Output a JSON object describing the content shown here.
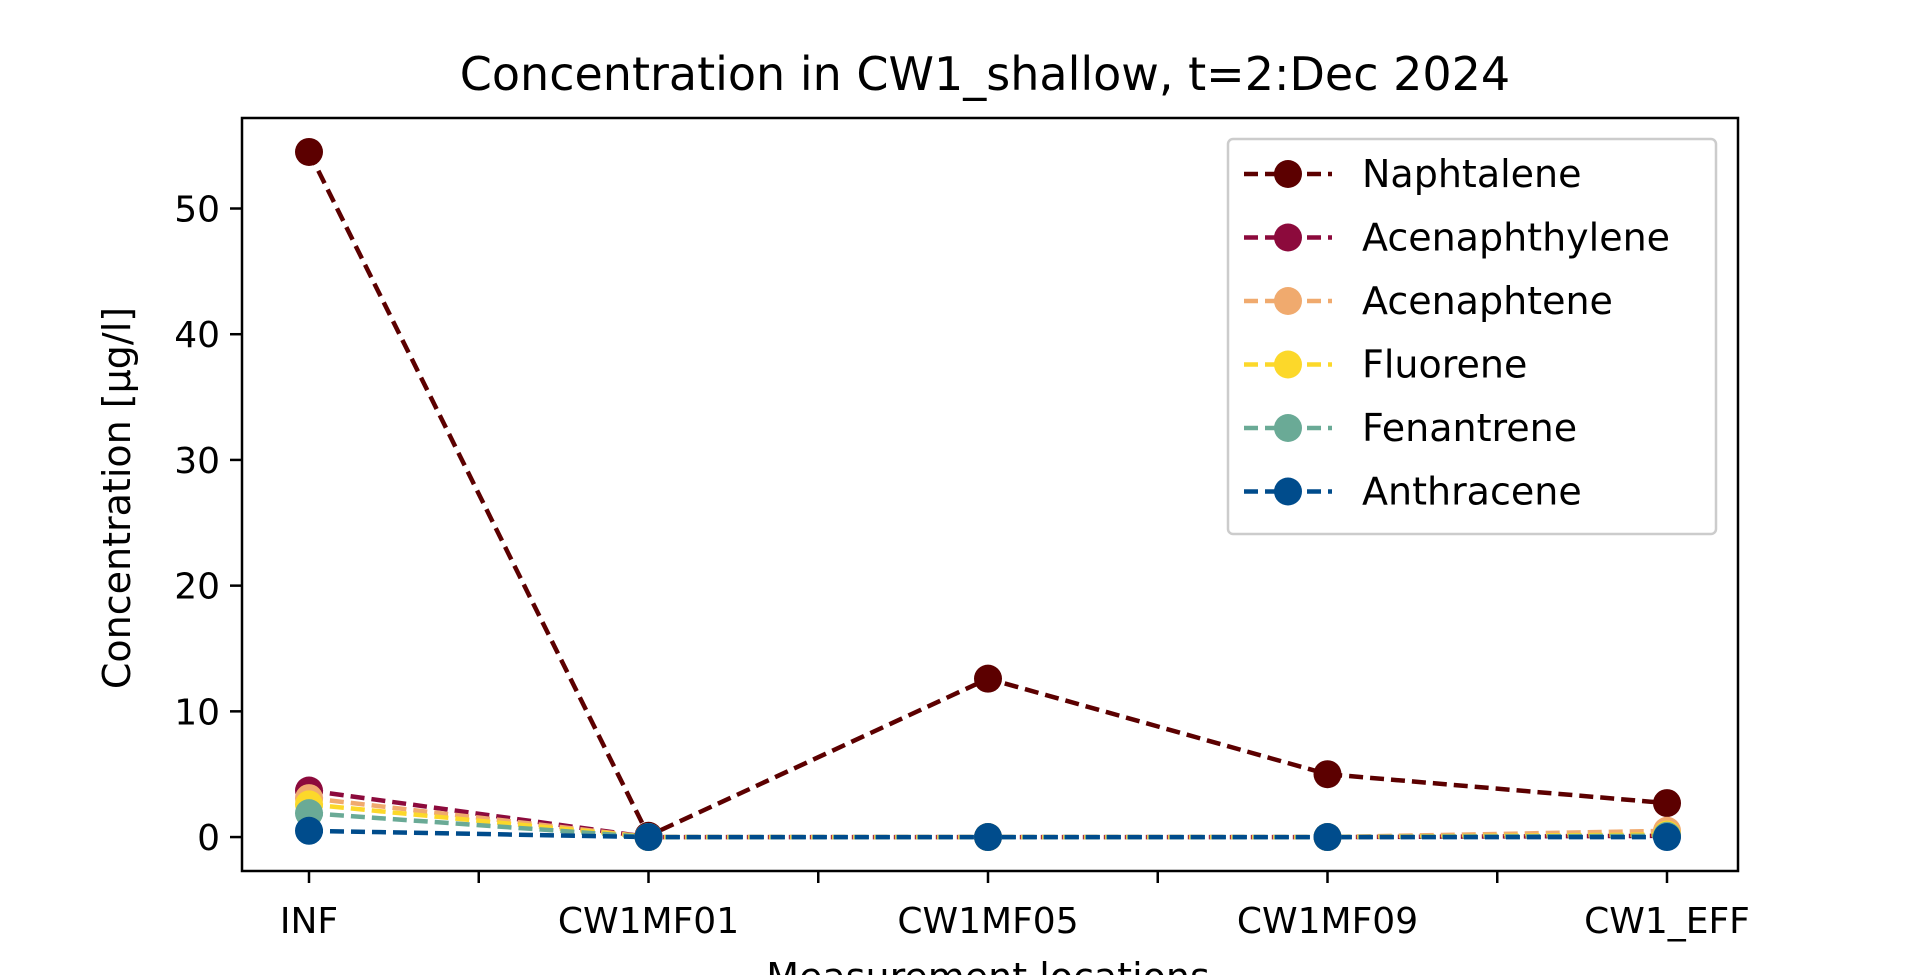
{
  "chart_data": {
    "type": "line",
    "title": "Concentration in CW1_shallow, t=2:Dec 2024",
    "xlabel": "Measurement locations",
    "ylabel": "Concentration [µg/l]",
    "categories": [
      "INF",
      "CW1MF01",
      "CW1MF05",
      "CW1MF09",
      "CW1_EFF"
    ],
    "ylim": [
      -2.7,
      57.2
    ],
    "yticks": [
      0,
      10,
      20,
      30,
      40,
      50
    ],
    "ytick_labels": [
      "0",
      "10",
      "20",
      "30",
      "40",
      "50"
    ],
    "grid": false,
    "legend_position": "top-right",
    "line_style": "dashed",
    "series": [
      {
        "name": "Naphtalene",
        "color": "#5c0000",
        "values": [
          54.5,
          0.1,
          12.6,
          5.0,
          2.7
        ]
      },
      {
        "name": "Acenaphthylene",
        "color": "#8c0a3c",
        "values": [
          3.7,
          0.0,
          0.0,
          0.0,
          0.1
        ]
      },
      {
        "name": "Acenaphtene",
        "color": "#f0aa6e",
        "values": [
          3.1,
          0.0,
          0.0,
          0.0,
          0.5
        ]
      },
      {
        "name": "Fluorene",
        "color": "#fcd82a",
        "values": [
          2.6,
          0.0,
          0.0,
          0.0,
          0.2
        ]
      },
      {
        "name": "Fenantrene",
        "color": "#6aaa96",
        "values": [
          1.9,
          0.0,
          0.0,
          0.0,
          0.1
        ]
      },
      {
        "name": "Anthracene",
        "color": "#004c8c",
        "values": [
          0.5,
          0.0,
          0.0,
          0.0,
          0.0
        ]
      }
    ]
  }
}
